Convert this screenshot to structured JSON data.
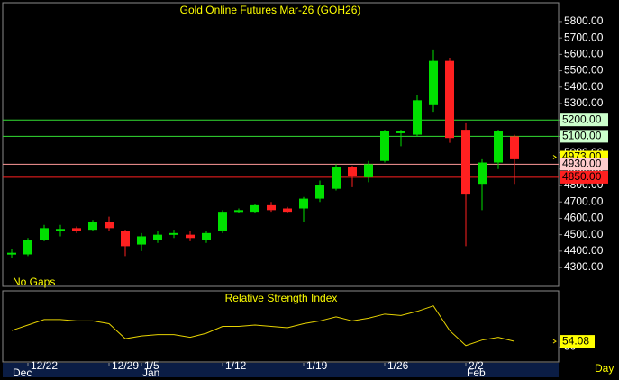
{
  "chart_data": {
    "type": "candlestick",
    "title": "Gold Online Futures Mar-26 (GOH26)",
    "note": "No Gaps",
    "x_labels": [
      null,
      "12/22",
      null,
      null,
      null,
      null,
      "12/29",
      null,
      "1/5",
      null,
      null,
      null,
      null,
      "1/12",
      null,
      null,
      null,
      null,
      "1/19",
      null,
      null,
      null,
      null,
      "1/26",
      null,
      null,
      null,
      null,
      "2/2",
      null,
      null,
      null
    ],
    "x_month_labels": [
      "Dec",
      null,
      null,
      null,
      null,
      null,
      null,
      null,
      "Jan",
      null,
      null,
      null,
      null,
      null,
      null,
      null,
      null,
      null,
      null,
      null,
      null,
      null,
      null,
      null,
      null,
      null,
      null,
      null,
      "Feb",
      null,
      null,
      null
    ],
    "x_unit_label": "Day",
    "open": [
      4380,
      4380,
      4470,
      4530,
      4540,
      4530,
      4580,
      4520,
      4440,
      4470,
      4500,
      4500,
      4470,
      4520,
      4640,
      4640,
      4680,
      4660,
      4660,
      4720,
      4780,
      4910,
      4850,
      4950,
      5120,
      5110,
      5290,
      5560,
      5140,
      4810,
      4940,
      5100
    ],
    "high": [
      4410,
      4480,
      4560,
      4560,
      4550,
      4590,
      4610,
      4530,
      4510,
      4520,
      4530,
      4520,
      4520,
      4650,
      4660,
      4690,
      4700,
      4670,
      4730,
      4830,
      4930,
      4920,
      4950,
      5140,
      5140,
      5350,
      5630,
      5580,
      5180,
      4960,
      5140,
      5110
    ],
    "low": [
      4360,
      4370,
      4460,
      4490,
      4510,
      4520,
      4520,
      4370,
      4400,
      4450,
      4480,
      4460,
      4450,
      4510,
      4630,
      4630,
      4640,
      4630,
      4580,
      4700,
      4770,
      4790,
      4820,
      4940,
      5040,
      5100,
      5250,
      5060,
      4430,
      4650,
      4900,
      4810
    ],
    "close": [
      4390,
      4470,
      4540,
      4535,
      4520,
      4580,
      4540,
      4430,
      4490,
      4500,
      4510,
      4480,
      4510,
      4640,
      4650,
      4680,
      4650,
      4640,
      4720,
      4800,
      4910,
      4860,
      4930,
      5130,
      5130,
      5320,
      5560,
      5090,
      4750,
      4940,
      5130,
      4960
    ],
    "up_color": "#00e000",
    "down_color": "#ff2020",
    "ylim": [
      4185,
      5915
    ],
    "yticks": [
      {
        "value": 4300,
        "label": "4300.00"
      },
      {
        "value": 4400,
        "label": "4400.00"
      },
      {
        "value": 4500,
        "label": "4500.00"
      },
      {
        "value": 4600,
        "label": "4600.00"
      },
      {
        "value": 4700,
        "label": "4700.00"
      },
      {
        "value": 4800,
        "label": "4800.00"
      },
      {
        "value": 4900,
        "label": "4900.00"
      },
      {
        "value": 5000,
        "label": "5000.00"
      },
      {
        "value": 5100,
        "label": "5100.00"
      },
      {
        "value": 5200,
        "label": "5200.00"
      },
      {
        "value": 5300,
        "label": "5300.00"
      },
      {
        "value": 5400,
        "label": "5400.00"
      },
      {
        "value": 5500,
        "label": "5500.00"
      },
      {
        "value": 5600,
        "label": "5600.00"
      },
      {
        "value": 5700,
        "label": "5700.00"
      },
      {
        "value": 5800,
        "label": "5800.00"
      }
    ],
    "levels": [
      {
        "value": 5200,
        "label": "5200.00",
        "color": "#33dd33",
        "box": "#ccffcc",
        "line": true
      },
      {
        "value": 5100,
        "label": "5100.00",
        "color": "#33dd33",
        "box": "#ccffcc",
        "line": true
      },
      {
        "value": 4973,
        "label": "4973.00",
        "color": "#ffff00",
        "box": "#ffff00",
        "line": false
      },
      {
        "value": 4930,
        "label": "4930.00",
        "color": "#ff9999",
        "box": "#ffcccc",
        "line": true
      },
      {
        "value": 4850,
        "label": "4850.00",
        "color": "#ff2020",
        "box": "#ff2020",
        "line": true
      }
    ],
    "rsi": {
      "title": "Relative Strength Index",
      "color": "#e6d200",
      "values": [
        62,
        66,
        70,
        70,
        69,
        69,
        67,
        56,
        58,
        59,
        59,
        57,
        60,
        65,
        65,
        66,
        65,
        64,
        67,
        69,
        72,
        69,
        71,
        74,
        73,
        76,
        80,
        62,
        51,
        55,
        57,
        54.08
      ],
      "last_label": "54.08",
      "ylim": [
        39,
        91
      ],
      "yticks": [
        50
      ]
    }
  }
}
